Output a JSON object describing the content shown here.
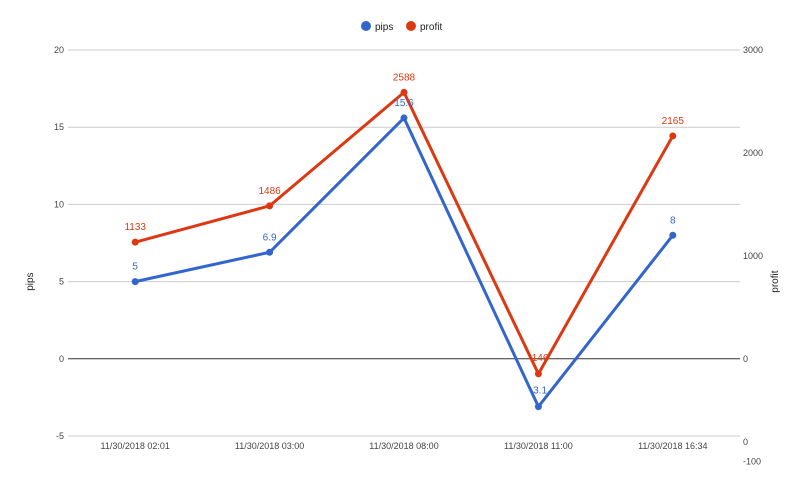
{
  "chart_data": {
    "type": "line",
    "title": "",
    "categories": [
      "11/30/2018 02:01",
      "11/30/2018 03:00",
      "11/30/2018 08:00",
      "11/30/2018 11:00",
      "11/30/2018 16:34"
    ],
    "legend": {
      "position": "top",
      "entries": [
        "pips",
        "profit"
      ]
    },
    "series": [
      {
        "name": "pips",
        "axis": "left",
        "color": "#3366cc",
        "values": [
          5,
          6.9,
          15.6,
          -3.1,
          8
        ],
        "labels": [
          "5",
          "6.9",
          "15.6",
          "-3.1",
          "8"
        ]
      },
      {
        "name": "profit",
        "axis": "right",
        "color": "#dc3912",
        "values": [
          1133,
          1486,
          2588,
          -146,
          2165
        ],
        "labels": [
          "1133",
          "1486",
          "2588",
          "-146",
          "2165"
        ]
      }
    ],
    "y_left": {
      "label": "pips",
      "ylim": [
        -5,
        20
      ],
      "ticks": [
        "-5",
        "0",
        "5",
        "10",
        "15",
        "20"
      ]
    },
    "y_right": {
      "label": "profit",
      "ylim": [
        -1000,
        3000
      ],
      "ticks": [
        "-100",
        "0",
        "1000",
        "2000",
        "3000"
      ],
      "extra_tick": "0"
    },
    "xlabel": "",
    "grid": true
  }
}
